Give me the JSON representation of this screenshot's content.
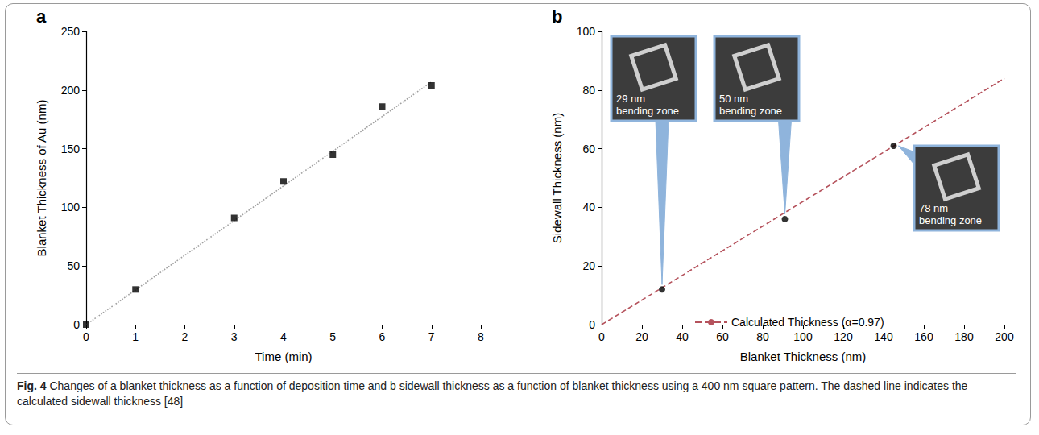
{
  "chart_data": [
    {
      "panel": "a",
      "type": "scatter",
      "x_label": "Time (min)",
      "y_label": "Blanket Thickness of Au (nm)",
      "xlim": [
        0,
        8
      ],
      "xticks": [
        0,
        1,
        2,
        3,
        4,
        5,
        6,
        7,
        8
      ],
      "ylim": [
        0,
        250
      ],
      "yticks": [
        0,
        50,
        100,
        150,
        200,
        250
      ],
      "grid": false,
      "series": [
        {
          "type": "scatter",
          "marker": "square",
          "color": "#000000",
          "x": [
            0,
            1,
            3,
            4,
            5,
            6,
            7
          ],
          "values": [
            0,
            30,
            91,
            122,
            145,
            186,
            204
          ]
        },
        {
          "type": "line",
          "line_style": "dotted",
          "color": "#a0a0a0",
          "x": [
            0,
            7
          ],
          "values": [
            0,
            207
          ]
        }
      ]
    },
    {
      "panel": "b",
      "type": "scatter",
      "x_label": "Blanket Thickness (nm)",
      "y_label": "Sidewall Thickness (nm)",
      "xlim": [
        0,
        200
      ],
      "xticks": [
        0,
        20,
        40,
        60,
        80,
        100,
        120,
        140,
        160,
        180,
        200
      ],
      "ylim": [
        0,
        100
      ],
      "yticks": [
        0,
        20,
        40,
        60,
        80,
        100
      ],
      "grid": false,
      "legend": "bottom",
      "series": [
        {
          "type": "scatter",
          "marker": "circle",
          "color": "#000000",
          "x": [
            30,
            91,
            145
          ],
          "values": [
            12,
            36,
            61
          ]
        },
        {
          "name": "Calculated Thickness (α=0.97)",
          "type": "line",
          "line_style": "dashed",
          "color": "#b5525c",
          "x": [
            0,
            200
          ],
          "values": [
            0,
            84
          ]
        }
      ],
      "annotations": [
        {
          "text": "29 nm bending zone",
          "x": 30,
          "y": 12
        },
        {
          "text": "50 nm bending zone",
          "x": 91,
          "y": 36
        },
        {
          "text": "78 nm bending zone",
          "x": 145,
          "y": 61
        }
      ]
    }
  ],
  "caption": {
    "label": "Fig. 4",
    "text": "Changes of a blanket thickness as a function of deposition time and b sidewall thickness as a function of blanket thickness using a 400 nm square pattern. The dashed line indicates the calculated sidewall thickness [48]"
  }
}
